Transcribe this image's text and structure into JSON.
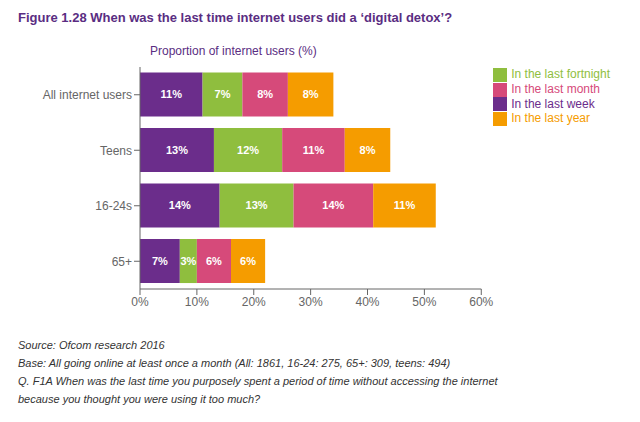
{
  "chart_data": {
    "type": "bar",
    "title": "Figure 1.28 When was the last time internet users did a ‘digital detox’?",
    "subtitle": "Proportion of internet users (%)",
    "annotations": [
      "Source: Ofcom research 2016",
      "Base: All going online at least once a month (All: 1861, 16-24: 275, 65+: 309, teens: 494)",
      "Q. F1A When was the last time you purposely spent a period of time without accessing the internet",
      "because you thought you were using it too much?"
    ],
    "orientation": "horizontal",
    "stacked": true,
    "data_labels": true,
    "grid": false,
    "legend": "right",
    "categories": [
      "All internet users",
      "Teens",
      "16-24s",
      "65+"
    ],
    "series": [
      {
        "name": "In the last week",
        "color": "#6b2d8b",
        "values": [
          11,
          13,
          14,
          7
        ],
        "value_labels": [
          "11%",
          "13%",
          "14%",
          "7%"
        ]
      },
      {
        "name": "In the last fortnight",
        "color": "#8fbe3e",
        "values": [
          7,
          12,
          13,
          3
        ],
        "value_labels": [
          "7%",
          "12%",
          "13%",
          "3%"
        ]
      },
      {
        "name": "In the last month",
        "color": "#d64a7a",
        "values": [
          8,
          11,
          14,
          6
        ],
        "value_labels": [
          "8%",
          "11%",
          "14%",
          "6%"
        ]
      },
      {
        "name": "In the last year",
        "color": "#f59c00",
        "values": [
          8,
          8,
          11,
          6
        ],
        "value_labels": [
          "8%",
          "8%",
          "11%",
          "6%"
        ]
      }
    ],
    "xlim": [
      0,
      60
    ],
    "xticks": [
      {
        "value": 0,
        "label": "0%"
      },
      {
        "value": 10,
        "label": "10%"
      },
      {
        "value": 20,
        "label": "20%"
      },
      {
        "value": 30,
        "label": "30%"
      },
      {
        "value": 40,
        "label": "40%"
      },
      {
        "value": 50,
        "label": "50%"
      },
      {
        "value": 60,
        "label": "60%"
      }
    ]
  }
}
